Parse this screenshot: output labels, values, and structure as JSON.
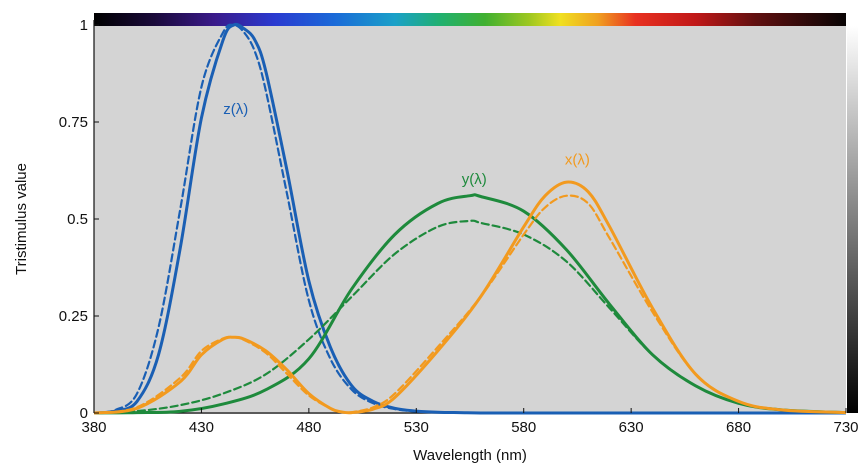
{
  "chart_data": {
    "type": "line",
    "xlabel": "Wavelength (nm)",
    "ylabel": "Tristimulus value",
    "xlim": [
      380,
      730
    ],
    "ylim": [
      0,
      1
    ],
    "x_ticks": [
      380,
      430,
      480,
      530,
      580,
      630,
      680,
      730
    ],
    "y_ticks": [
      0,
      0.25,
      0.5,
      0.75,
      1
    ],
    "y_tick_labels": [
      "0",
      "0.25",
      "0.5",
      "0.75",
      "1"
    ],
    "grid": false,
    "spectrum_bar": true,
    "colors": {
      "z": "#1a5fb4",
      "y": "#1e8a3c",
      "x": "#f29a1f",
      "plot_bg": "#d4d4d4"
    },
    "series": [
      {
        "name": "z(λ)",
        "key": "z",
        "style": "solid",
        "x": [
          380,
          390,
          400,
          410,
          420,
          430,
          440,
          445,
          450,
          455,
          460,
          470,
          480,
          490,
          500,
          510,
          520,
          530,
          540,
          550,
          560,
          580,
          600,
          730
        ],
        "y": [
          0,
          0.005,
          0.03,
          0.15,
          0.42,
          0.76,
          0.96,
          1.0,
          0.99,
          0.96,
          0.88,
          0.62,
          0.34,
          0.17,
          0.07,
          0.03,
          0.012,
          0.005,
          0.002,
          0.001,
          0,
          0,
          0,
          0
        ]
      },
      {
        "name": "z(λ)",
        "key": "z",
        "style": "dashed",
        "x": [
          380,
          390,
          400,
          410,
          420,
          430,
          440,
          445,
          450,
          455,
          460,
          470,
          480,
          490,
          500,
          510,
          520,
          530,
          540,
          550,
          560,
          580,
          600,
          730
        ],
        "y": [
          0,
          0.008,
          0.05,
          0.22,
          0.52,
          0.84,
          0.98,
          1.0,
          0.98,
          0.93,
          0.83,
          0.56,
          0.29,
          0.14,
          0.06,
          0.025,
          0.01,
          0.004,
          0.002,
          0.001,
          0,
          0,
          0,
          0
        ]
      },
      {
        "name": "y(λ)",
        "key": "y",
        "style": "solid",
        "x": [
          380,
          400,
          420,
          440,
          460,
          480,
          500,
          520,
          540,
          555,
          560,
          580,
          600,
          620,
          640,
          660,
          680,
          700,
          730
        ],
        "y": [
          0,
          0.001,
          0.004,
          0.023,
          0.06,
          0.14,
          0.32,
          0.46,
          0.54,
          0.56,
          0.558,
          0.52,
          0.42,
          0.28,
          0.15,
          0.07,
          0.025,
          0.008,
          0.001
        ]
      },
      {
        "name": "y(λ)",
        "key": "y",
        "style": "dashed",
        "x": [
          380,
          400,
          420,
          440,
          460,
          480,
          500,
          520,
          540,
          555,
          560,
          580,
          600,
          620,
          640,
          660,
          680,
          700,
          730
        ],
        "y": [
          0,
          0.005,
          0.02,
          0.05,
          0.1,
          0.19,
          0.3,
          0.41,
          0.48,
          0.495,
          0.49,
          0.46,
          0.39,
          0.27,
          0.15,
          0.07,
          0.025,
          0.008,
          0.001
        ]
      },
      {
        "name": "x(λ)",
        "key": "x",
        "style": "solid",
        "x": [
          380,
          400,
          420,
          430,
          440,
          445,
          450,
          460,
          470,
          480,
          490,
          495,
          500,
          510,
          520,
          540,
          560,
          580,
          590,
          600,
          610,
          620,
          640,
          660,
          680,
          700,
          730
        ],
        "y": [
          0,
          0.012,
          0.08,
          0.15,
          0.19,
          0.195,
          0.19,
          0.16,
          0.11,
          0.05,
          0.012,
          0.003,
          0.001,
          0.01,
          0.04,
          0.16,
          0.3,
          0.48,
          0.56,
          0.595,
          0.57,
          0.48,
          0.27,
          0.1,
          0.03,
          0.008,
          0.001
        ]
      },
      {
        "name": "x(λ)",
        "key": "x",
        "style": "dashed",
        "x": [
          380,
          400,
          420,
          430,
          440,
          445,
          450,
          460,
          470,
          480,
          490,
          495,
          500,
          510,
          520,
          540,
          560,
          580,
          590,
          600,
          610,
          620,
          640,
          660,
          680,
          700,
          730
        ],
        "y": [
          0,
          0.015,
          0.09,
          0.16,
          0.192,
          0.195,
          0.188,
          0.155,
          0.1,
          0.045,
          0.012,
          0.003,
          0.002,
          0.015,
          0.05,
          0.17,
          0.3,
          0.46,
          0.53,
          0.56,
          0.54,
          0.45,
          0.26,
          0.1,
          0.03,
          0.008,
          0.001
        ]
      }
    ],
    "labels": [
      {
        "text": "z(λ)",
        "key": "z",
        "x": 446,
        "y": 0.77
      },
      {
        "text": "y(λ)",
        "key": "y",
        "x": 557,
        "y": 0.59
      },
      {
        "text": "x(λ)",
        "key": "x",
        "x": 605,
        "y": 0.64
      }
    ]
  }
}
